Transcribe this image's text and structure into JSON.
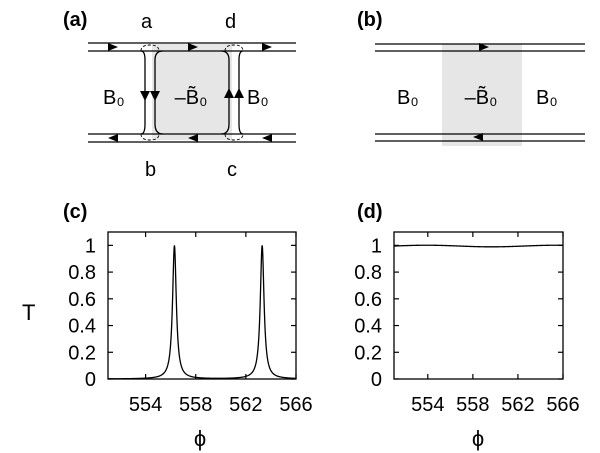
{
  "panels": {
    "a": {
      "label": "(a)",
      "corner_labels": {
        "top_left": "a",
        "top_right": "d",
        "bottom_left": "b",
        "bottom_right": "c"
      },
      "region_left": "B₀",
      "region_middle": "–B̃₀",
      "region_right": "B₀",
      "shade_color": "#e6e6e6"
    },
    "b": {
      "label": "(b)",
      "region_left": "B₀",
      "region_middle": "–B̃₀",
      "region_right": "B₀",
      "shade_color": "#e6e6e6"
    },
    "c": {
      "label": "(c)"
    },
    "d": {
      "label": "(d)"
    }
  },
  "chart_data": [
    {
      "panel": "c",
      "type": "line",
      "ylabel": "T",
      "xlabel": "ϕ",
      "xlim": [
        551,
        566
      ],
      "ylim": [
        0,
        1.1
      ],
      "x_ticks": [
        554,
        558,
        562,
        566
      ],
      "y_ticks": [
        0,
        0.2,
        0.4,
        0.6,
        0.8,
        1
      ],
      "y_tick_labels": [
        "0",
        "0.2",
        "0.4",
        "0.6",
        "0.8",
        "1"
      ],
      "peaks": [
        {
          "x": 556.3,
          "y": 1.0,
          "width": 0.18
        },
        {
          "x": 563.3,
          "y": 1.0,
          "width": 0.18
        }
      ],
      "baseline": 0.0
    },
    {
      "panel": "d",
      "type": "line",
      "ylabel": "",
      "xlabel": "ϕ",
      "xlim": [
        551,
        566
      ],
      "ylim": [
        0,
        1.1
      ],
      "x_ticks": [
        554,
        558,
        562,
        566
      ],
      "y_ticks": [
        0,
        0.2,
        0.4,
        0.6,
        0.8,
        1
      ],
      "y_tick_labels": [
        "0",
        "0.2",
        "0.4",
        "0.6",
        "0.8",
        "1"
      ],
      "level": 0.995,
      "ripple": 0.006
    }
  ]
}
